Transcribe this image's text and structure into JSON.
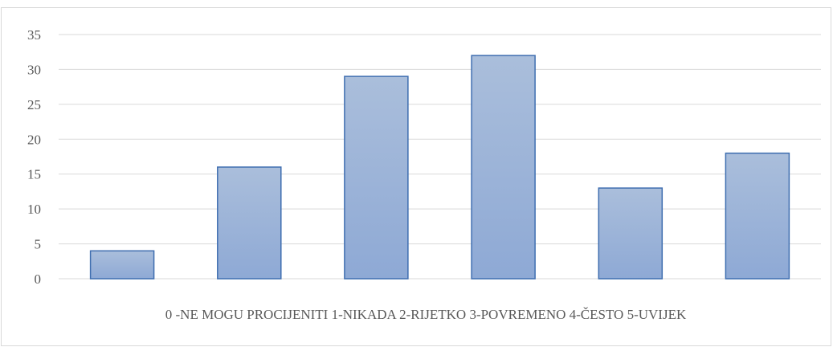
{
  "chart_data": {
    "type": "bar",
    "categories": [
      "0",
      "1",
      "2",
      "3",
      "4",
      "5"
    ],
    "values": [
      4,
      16,
      29,
      32,
      13,
      18
    ],
    "title": "",
    "xlabel": "0 -NE MOGU PROCIJENITI 1-NIKADA 2-RIJETKO 3-POVREMENO 4-ČESTO 5-UVIJEK",
    "ylabel": "",
    "ylim": [
      0,
      35
    ],
    "yticks": [
      "0",
      "5",
      "10",
      "15",
      "20",
      "25",
      "30",
      "35"
    ],
    "grid": true,
    "legend": "none",
    "colors": {
      "bar_fill_top": "#aabedb",
      "bar_fill_bottom": "#8ea9d5",
      "bar_stroke": "#3f6eb0",
      "gridline": "#d9d9d9",
      "axis_text": "#595959"
    }
  }
}
